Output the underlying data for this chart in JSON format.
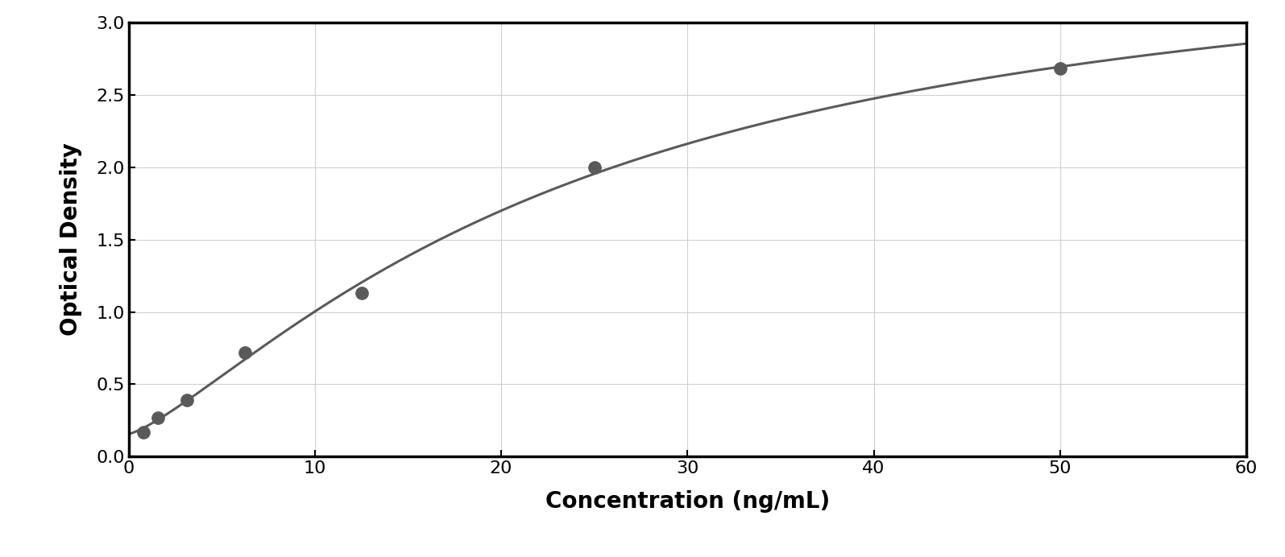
{
  "x_data": [
    0.78,
    1.56,
    3.125,
    6.25,
    12.5,
    25.0,
    50.0
  ],
  "y_data": [
    0.17,
    0.27,
    0.39,
    0.72,
    1.13,
    2.0,
    2.68
  ],
  "xlabel": "Concentration (ng/mL)",
  "ylabel": "Optical Density",
  "xlim": [
    0,
    60
  ],
  "ylim": [
    0,
    3
  ],
  "xticks": [
    0,
    10,
    20,
    30,
    40,
    50,
    60
  ],
  "yticks": [
    0,
    0.5,
    1.0,
    1.5,
    2.0,
    2.5,
    3.0
  ],
  "data_color": "#5a5a5a",
  "line_color": "#5a5a5a",
  "background_color": "#ffffff",
  "outer_background": "#ffffff",
  "grid_color": "#d0d0d0",
  "marker_size": 11,
  "line_width": 2.2,
  "tick_fontsize": 16,
  "label_fontsize": 20
}
